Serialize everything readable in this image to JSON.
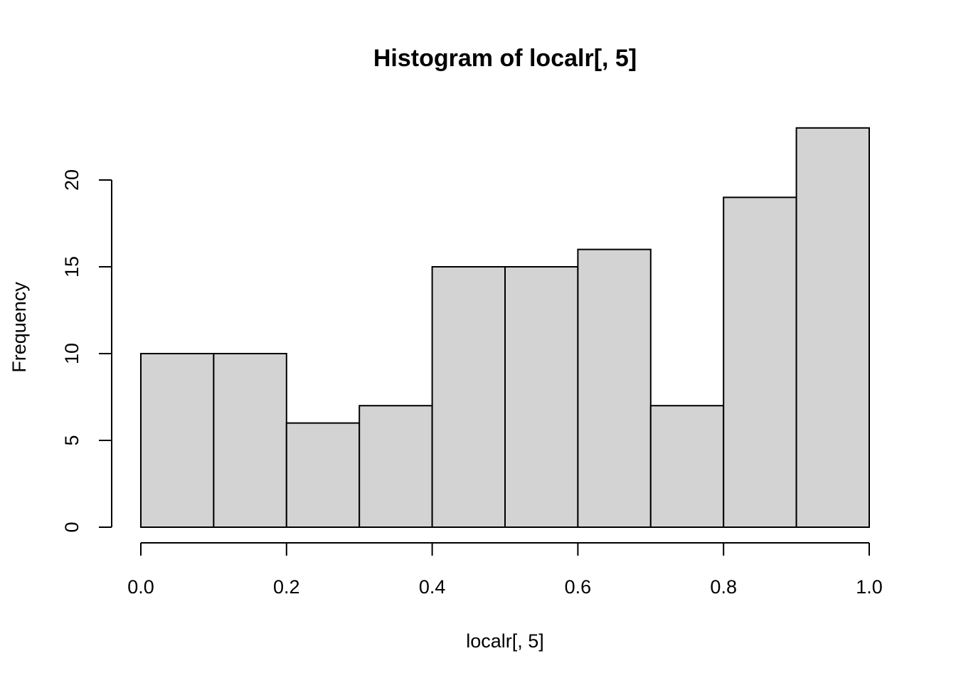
{
  "chart_data": {
    "type": "bar",
    "title": "Histogram of localr[, 5]",
    "xlabel": "localr[, 5]",
    "ylabel": "Frequency",
    "bin_edges": [
      0.0,
      0.1,
      0.2,
      0.3,
      0.4,
      0.5,
      0.6,
      0.7,
      0.8,
      0.9,
      1.0
    ],
    "values": [
      10,
      10,
      6,
      7,
      15,
      15,
      16,
      7,
      19,
      23
    ],
    "xlim": [
      0.0,
      1.0
    ],
    "ylim": [
      0,
      23
    ],
    "x_ticks": [
      0.0,
      0.2,
      0.4,
      0.6,
      0.8,
      1.0
    ],
    "x_tick_labels": [
      "0.0",
      "0.2",
      "0.4",
      "0.6",
      "0.8",
      "1.0"
    ],
    "y_ticks": [
      0,
      5,
      10,
      15,
      20
    ],
    "y_tick_labels": [
      "0",
      "5",
      "10",
      "15",
      "20"
    ],
    "grid": false,
    "legend": "none",
    "colors": {
      "bar_fill": "#d3d3d3",
      "bar_stroke": "#000000",
      "axis": "#000000",
      "background": "#ffffff"
    }
  }
}
